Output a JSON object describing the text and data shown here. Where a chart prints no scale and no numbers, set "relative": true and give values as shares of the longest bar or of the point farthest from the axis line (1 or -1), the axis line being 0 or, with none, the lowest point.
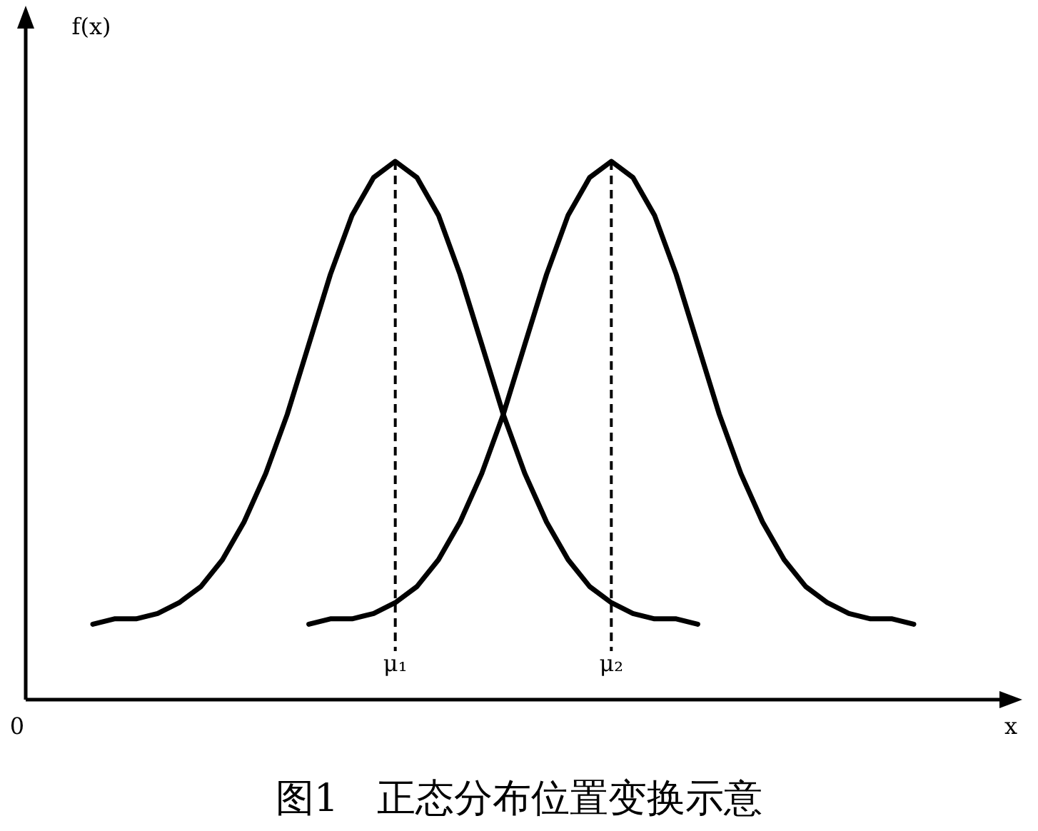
{
  "chart_data": {
    "type": "line",
    "relative": true,
    "title": "图1　正态分布位置变换示意",
    "xlabel": "x",
    "annotations": [
      "0",
      "f(x)"
    ],
    "categories": [
      null,
      null,
      null,
      null,
      null,
      null,
      null,
      null,
      null,
      null,
      null,
      null,
      null,
      null,
      "μ₁",
      null,
      null,
      null,
      null,
      null,
      null,
      null,
      null,
      null,
      "μ₂",
      null,
      null,
      null,
      null,
      null,
      null,
      null,
      null,
      null,
      null,
      null,
      null,
      null,
      null
    ],
    "series": [
      {
        "color": "#000000",
        "values": [
          0.14,
          0.15,
          0.15,
          0.16,
          0.18,
          0.21,
          0.26,
          0.33,
          0.42,
          0.53,
          0.66,
          0.79,
          0.9,
          0.97,
          1.0,
          0.97,
          0.9,
          0.79,
          0.66,
          0.53,
          0.42,
          0.33,
          0.26,
          0.21,
          0.18,
          0.16,
          0.15,
          0.15,
          0.14,
          null,
          null,
          null,
          null,
          null,
          null,
          null,
          null,
          null,
          null
        ]
      },
      {
        "color": "#000000",
        "values": [
          null,
          null,
          null,
          null,
          null,
          null,
          null,
          null,
          null,
          null,
          0.14,
          0.15,
          0.15,
          0.16,
          0.18,
          0.21,
          0.26,
          0.33,
          0.42,
          0.53,
          0.66,
          0.79,
          0.9,
          0.97,
          1.0,
          0.97,
          0.9,
          0.79,
          0.66,
          0.53,
          0.42,
          0.33,
          0.26,
          0.21,
          0.18,
          0.16,
          0.15,
          0.15,
          0.14
        ]
      }
    ],
    "ref_lines": [
      {
        "axis": "x",
        "value": "μ₁",
        "line_style": "dashed"
      },
      {
        "axis": "x",
        "value": "μ₂",
        "line_style": "dashed"
      }
    ]
  }
}
